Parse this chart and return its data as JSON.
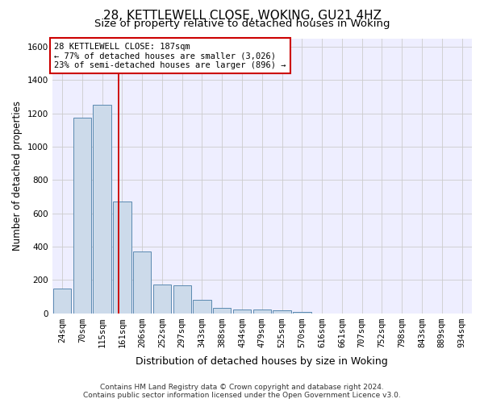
{
  "title_line1": "28, KETTLEWELL CLOSE, WOKING, GU21 4HZ",
  "title_line2": "Size of property relative to detached houses in Woking",
  "xlabel": "Distribution of detached houses by size in Woking",
  "ylabel": "Number of detached properties",
  "footer_line1": "Contains HM Land Registry data © Crown copyright and database right 2024.",
  "footer_line2": "Contains public sector information licensed under the Open Government Licence v3.0.",
  "categories": [
    "24sqm",
    "70sqm",
    "115sqm",
    "161sqm",
    "206sqm",
    "252sqm",
    "297sqm",
    "343sqm",
    "388sqm",
    "434sqm",
    "479sqm",
    "525sqm",
    "570sqm",
    "616sqm",
    "661sqm",
    "707sqm",
    "752sqm",
    "798sqm",
    "843sqm",
    "889sqm",
    "934sqm"
  ],
  "values": [
    150,
    1175,
    1250,
    670,
    370,
    170,
    165,
    80,
    30,
    22,
    20,
    15,
    5,
    0,
    0,
    0,
    0,
    0,
    0,
    0,
    0
  ],
  "bar_color": "#ccdaea",
  "bar_edge_color": "#5a8ab0",
  "property_line_x": 2.82,
  "annotation_text_line1": "28 KETTLEWELL CLOSE: 187sqm",
  "annotation_text_line2": "← 77% of detached houses are smaller (3,026)",
  "annotation_text_line3": "23% of semi-detached houses are larger (896) →",
  "annotation_box_facecolor": "#ffffff",
  "annotation_box_edgecolor": "#cc0000",
  "red_line_color": "#cc0000",
  "ylim": [
    0,
    1650
  ],
  "yticks": [
    0,
    200,
    400,
    600,
    800,
    1000,
    1200,
    1400,
    1600
  ],
  "grid_color": "#cccccc",
  "background_color": "#eeeeff",
  "title_fontsize": 11,
  "subtitle_fontsize": 9.5,
  "ylabel_fontsize": 8.5,
  "xlabel_fontsize": 9,
  "tick_fontsize": 7.5,
  "annotation_fontsize": 7.5,
  "footer_fontsize": 6.5
}
